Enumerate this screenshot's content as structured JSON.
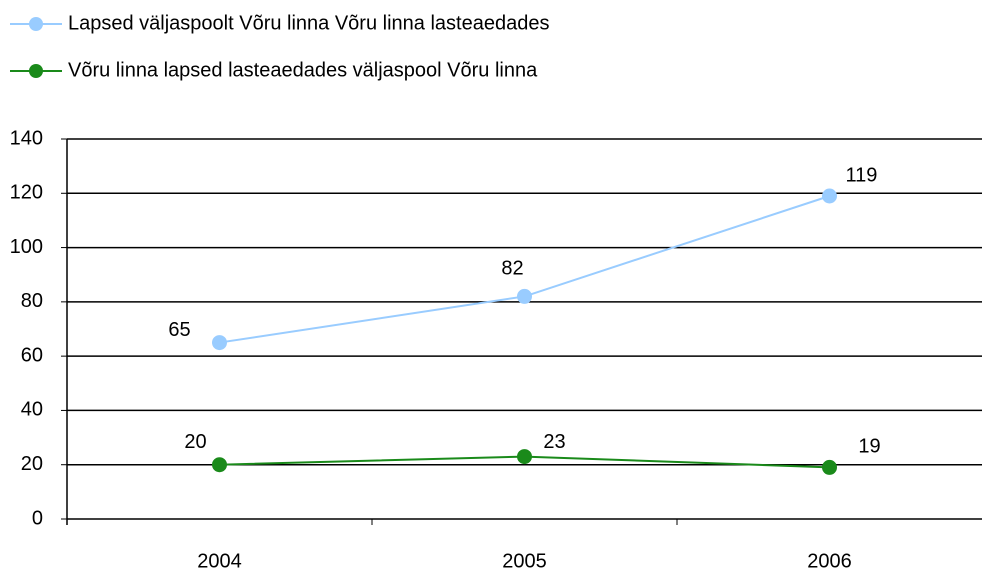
{
  "chart_data": {
    "type": "line",
    "categories": [
      "2004",
      "2005",
      "2006"
    ],
    "series": [
      {
        "name": "Lapsed väljaspoolt Võru linna Võru linna lasteaedades",
        "color": "#99ccff",
        "values": [
          65,
          82,
          119
        ]
      },
      {
        "name": "Võru linna lapsed lasteaedades väljaspool Võru linna",
        "color": "#1a8a1a",
        "values": [
          20,
          23,
          19
        ]
      }
    ],
    "ylim": [
      0,
      140
    ],
    "yticks": [
      0,
      20,
      40,
      60,
      80,
      100,
      120,
      140
    ],
    "grid": true
  }
}
